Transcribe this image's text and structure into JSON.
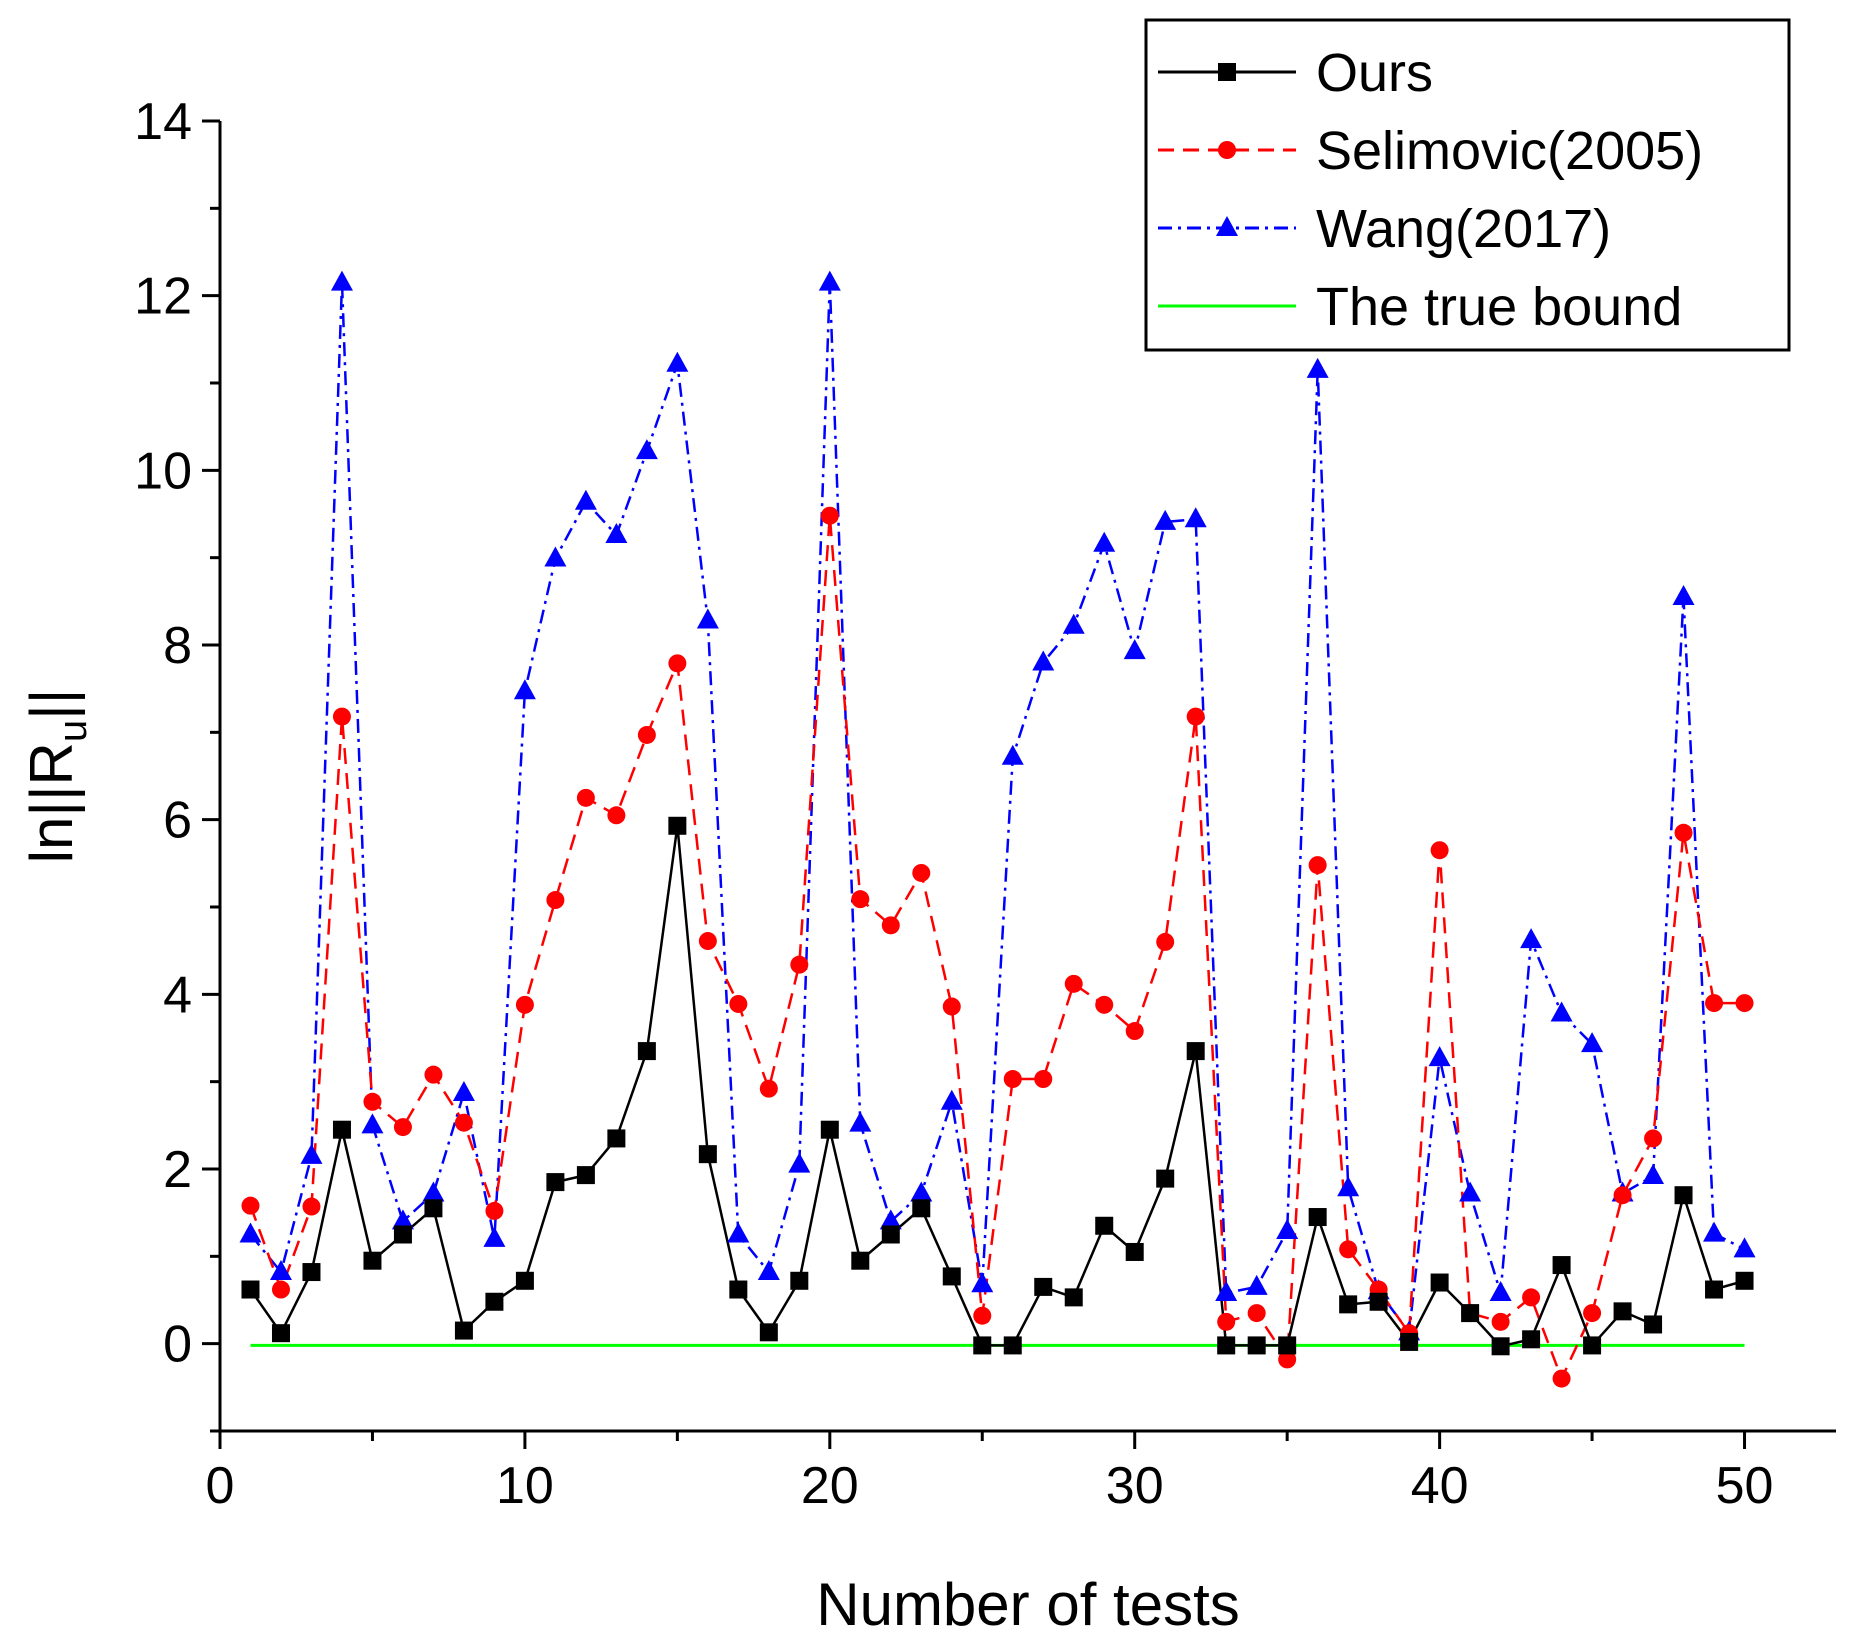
{
  "chart_data": {
    "type": "line",
    "title": "",
    "xlabel": "Number of tests",
    "ylabel_parts": [
      "ln||R",
      "u",
      "||"
    ],
    "xlim": [
      0,
      53
    ],
    "ylim": [
      -1,
      14
    ],
    "xticks": [
      0,
      10,
      20,
      30,
      40,
      50
    ],
    "xtick_labels": [
      "0",
      "10",
      "20",
      "30",
      "40",
      "50"
    ],
    "yticks": [
      0,
      2,
      4,
      6,
      8,
      10,
      12,
      14
    ],
    "ytick_labels": [
      "0",
      "2",
      "4",
      "6",
      "8",
      "10",
      "12",
      "14"
    ],
    "legend_position": "top-right",
    "x": [
      1,
      2,
      3,
      4,
      5,
      6,
      7,
      8,
      9,
      10,
      11,
      12,
      13,
      14,
      15,
      16,
      17,
      18,
      19,
      20,
      21,
      22,
      23,
      24,
      25,
      26,
      27,
      28,
      29,
      30,
      31,
      32,
      33,
      34,
      35,
      36,
      37,
      38,
      39,
      40,
      41,
      42,
      43,
      44,
      45,
      46,
      47,
      48,
      49,
      50
    ],
    "series": [
      {
        "name": "Ours",
        "color": "#000000",
        "dash": "solid",
        "marker": "square",
        "values": [
          0.62,
          0.12,
          0.82,
          2.45,
          0.95,
          1.25,
          1.55,
          0.15,
          0.48,
          0.72,
          1.85,
          1.93,
          2.35,
          3.35,
          5.93,
          2.17,
          0.62,
          0.13,
          0.72,
          2.45,
          0.95,
          1.25,
          1.55,
          0.77,
          -0.02,
          -0.02,
          0.65,
          0.53,
          1.35,
          1.05,
          1.89,
          3.35,
          -0.02,
          -0.02,
          -0.02,
          1.45,
          0.45,
          0.48,
          0.02,
          0.7,
          0.35,
          -0.03,
          0.05,
          0.9,
          -0.02,
          0.37,
          0.22,
          1.7,
          0.62,
          0.72
        ]
      },
      {
        "name": "Selimovic(2005)",
        "color": "#ff0000",
        "dash": "dashed",
        "marker": "circle",
        "values": [
          1.58,
          0.62,
          1.57,
          7.18,
          2.77,
          2.48,
          3.08,
          2.53,
          1.52,
          3.88,
          5.08,
          6.25,
          6.05,
          6.97,
          7.79,
          4.61,
          3.89,
          2.92,
          4.34,
          9.48,
          5.09,
          4.79,
          5.39,
          3.86,
          0.32,
          3.03,
          3.03,
          4.12,
          3.88,
          3.58,
          4.6,
          7.18,
          0.25,
          0.35,
          -0.18,
          5.48,
          1.08,
          0.62,
          0.12,
          5.65,
          0.35,
          0.25,
          0.53,
          -0.4,
          0.35,
          1.7,
          2.35,
          5.85,
          3.9,
          3.9
        ]
      },
      {
        "name": "Wang(2017)",
        "color": "#0000ff",
        "dash": "dashdot",
        "marker": "triangle",
        "values": [
          1.25,
          0.82,
          2.15,
          12.15,
          2.5,
          1.4,
          1.72,
          2.87,
          1.2,
          7.47,
          8.99,
          9.64,
          9.26,
          10.22,
          11.22,
          8.28,
          1.25,
          0.82,
          2.05,
          12.15,
          2.52,
          1.4,
          1.72,
          2.77,
          0.68,
          6.72,
          7.8,
          8.22,
          9.16,
          7.93,
          9.41,
          9.44,
          0.58,
          0.65,
          1.29,
          11.15,
          1.78,
          0.6,
          0.13,
          3.27,
          1.72,
          0.58,
          4.62,
          3.78,
          3.43,
          1.72,
          1.92,
          8.55,
          1.26,
          1.08
        ]
      },
      {
        "name": "The true bound",
        "color": "#00ff00",
        "dash": "solid",
        "marker": "none",
        "values": [
          -0.02,
          -0.02,
          -0.02,
          -0.02,
          -0.02,
          -0.02,
          -0.02,
          -0.02,
          -0.02,
          -0.02,
          -0.02,
          -0.02,
          -0.02,
          -0.02,
          -0.02,
          -0.02,
          -0.02,
          -0.02,
          -0.02,
          -0.02,
          -0.02,
          -0.02,
          -0.02,
          -0.02,
          -0.02,
          -0.02,
          -0.02,
          -0.02,
          -0.02,
          -0.02,
          -0.02,
          -0.02,
          -0.02,
          -0.02,
          -0.02,
          -0.02,
          -0.02,
          -0.02,
          -0.02,
          -0.02,
          -0.02,
          -0.02,
          -0.02,
          -0.02,
          -0.02,
          -0.02,
          -0.02,
          -0.02,
          -0.02,
          -0.02
        ]
      }
    ]
  }
}
